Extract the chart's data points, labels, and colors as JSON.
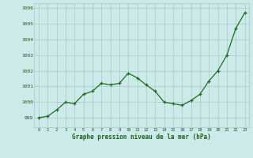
{
  "x": [
    0,
    1,
    2,
    3,
    4,
    5,
    6,
    7,
    8,
    9,
    10,
    11,
    12,
    13,
    14,
    15,
    16,
    17,
    18,
    19,
    20,
    21,
    22,
    23
  ],
  "y": [
    999.0,
    999.1,
    999.5,
    1000.0,
    999.9,
    1000.5,
    1000.7,
    1001.2,
    1001.1,
    1001.2,
    1001.85,
    1001.55,
    1001.1,
    1000.7,
    1000.0,
    999.9,
    999.8,
    1000.1,
    1000.5,
    1001.35,
    1002.0,
    1003.0,
    1004.7,
    1005.7
  ],
  "line_color": "#1a6e1a",
  "marker": "+",
  "marker_color": "#1a6e1a",
  "bg_color": "#cceaea",
  "grid_color": "#a8c8c8",
  "xlabel": "Graphe pression niveau de la mer (hPa)",
  "xlabel_color": "#1a5e1a",
  "tick_color": "#1a5e1a",
  "ylim": [
    998.4,
    1006.3
  ],
  "yticks": [
    999,
    1000,
    1001,
    1002,
    1003,
    1004,
    1005,
    1006
  ],
  "xticks": [
    0,
    1,
    2,
    3,
    4,
    5,
    6,
    7,
    8,
    9,
    10,
    11,
    12,
    13,
    14,
    15,
    16,
    17,
    18,
    19,
    20,
    21,
    22,
    23
  ]
}
